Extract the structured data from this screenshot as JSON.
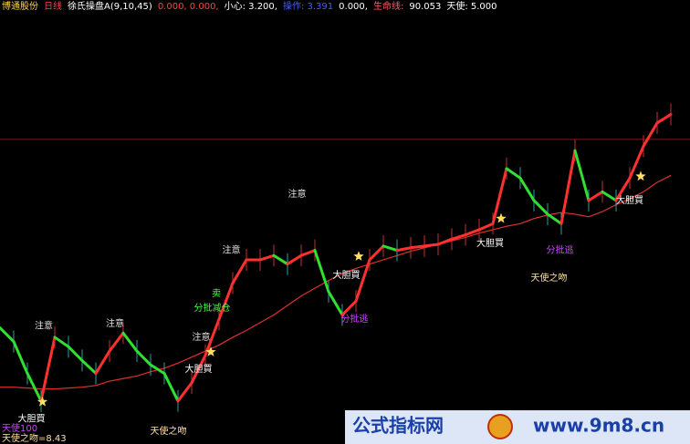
{
  "chart_data": {
    "type": "line",
    "header": [
      {
        "text": "博通股份",
        "color": "#ffd24a"
      },
      {
        "text": "日线",
        "color": "#ff4040"
      },
      {
        "text": "徐氏操盘A(9,10,45)",
        "color": "#ffffff"
      },
      {
        "text": "0.000, 0.000,",
        "color": "#ff4040"
      },
      {
        "text": "小心: 3.200,",
        "color": "#ffffff"
      },
      {
        "text": "操作: 3.391",
        "color": "#4060ff"
      },
      {
        "text": "0.000,",
        "color": "#ffffff"
      },
      {
        "text": "生命线:",
        "color": "#ff6060"
      },
      {
        "text": "90.053",
        "color": "#ffffff"
      },
      {
        "text": "天使: 5.000",
        "color": "#ffffff"
      }
    ],
    "ylim": [
      7,
      12
    ],
    "ref_line": {
      "value": 10.54,
      "color": "#7a1a1a"
    },
    "series": [
      {
        "color": "#e03030",
        "values": [
          7.66,
          7.66,
          7.65,
          7.64,
          7.64,
          7.65,
          7.66,
          7.68,
          7.73,
          7.76,
          7.79,
          7.84,
          7.88,
          7.94,
          8.01,
          8.08,
          8.15,
          8.24,
          8.32,
          8.41,
          8.5,
          8.61,
          8.72,
          8.81,
          8.9,
          8.98,
          9.04,
          9.09,
          9.14,
          9.19,
          9.24,
          9.28,
          9.32,
          9.36,
          9.4,
          9.45,
          9.49,
          9.53,
          9.56,
          9.62,
          9.66,
          9.69,
          9.67,
          9.64,
          9.7,
          9.78,
          9.85,
          9.93,
          10.04,
          10.12
        ]
      },
      {
        "color": "#ff3030",
        "values": [
          8.35,
          8.19,
          7.82,
          7.5,
          8.24,
          8.13,
          7.97,
          7.82,
          8.08,
          8.29,
          8.08,
          7.92,
          7.82,
          7.5,
          7.71,
          8.03,
          8.45,
          8.87,
          9.14,
          9.14,
          9.19,
          9.09,
          9.19,
          9.25,
          8.77,
          8.5,
          8.66,
          9.14,
          9.3,
          9.25,
          9.28,
          9.3,
          9.32,
          9.38,
          9.43,
          9.49,
          9.56,
          10.2,
          10.09,
          9.83,
          9.67,
          9.56,
          10.41,
          9.83,
          9.93,
          9.83,
          10.09,
          10.46,
          10.73,
          10.83
        ]
      }
    ],
    "annotations": [
      {
        "text": "注意",
        "x": 3.2,
        "y": 8.37,
        "color": "#e0e0e0"
      },
      {
        "text": "注意",
        "x": 8.4,
        "y": 8.4,
        "color": "#e0e0e0"
      },
      {
        "text": "注意",
        "x": 14.7,
        "y": 8.24,
        "color": "#e0e0e0"
      },
      {
        "text": "注意",
        "x": 16.9,
        "y": 9.25,
        "color": "#e0e0e0"
      },
      {
        "text": "注意",
        "x": 21.7,
        "y": 9.9,
        "color": "#e0e0e0"
      },
      {
        "text": "大胆買",
        "x": 2.3,
        "y": 7.29,
        "color": "#ffffff"
      },
      {
        "text": "大胆買",
        "x": 14.5,
        "y": 7.87,
        "color": "#ffffff"
      },
      {
        "text": "大胆買",
        "x": 25.3,
        "y": 8.96,
        "color": "#ffffff"
      },
      {
        "text": "大胆買",
        "x": 35.8,
        "y": 9.33,
        "color": "#ffffff"
      },
      {
        "text": "大胆買",
        "x": 46,
        "y": 9.83,
        "color": "#ffffff"
      },
      {
        "text": "天使之吻",
        "x": 12.3,
        "y": 7.15,
        "color": "#ffe0a0"
      },
      {
        "text": "天使之吻",
        "x": 40.1,
        "y": 8.93,
        "color": "#ffe0a0"
      },
      {
        "text": "卖",
        "x": 15.8,
        "y": 8.75,
        "color": "#40ff40"
      },
      {
        "text": "分批减仓",
        "x": 15.5,
        "y": 8.58,
        "color": "#40ff40"
      },
      {
        "text": "分批逃",
        "x": 25.9,
        "y": 8.45,
        "color": "#d040ff"
      },
      {
        "text": "分批逃",
        "x": 40.9,
        "y": 9.25,
        "color": "#d040ff"
      }
    ],
    "stars": [
      {
        "x": 3.1,
        "y": 7.49
      },
      {
        "x": 15.4,
        "y": 8.07
      },
      {
        "x": 26.2,
        "y": 9.18
      },
      {
        "x": 36.6,
        "y": 9.62
      },
      {
        "x": 46.8,
        "y": 10.11
      }
    ],
    "footer": [
      {
        "text": "天使100",
        "color": "#d040ff"
      },
      {
        "text": "天使之吻=8.43",
        "color": "#ffe0a0"
      }
    ],
    "watermark": {
      "title": "公式指标网",
      "url": "www.9m8.cn"
    }
  }
}
